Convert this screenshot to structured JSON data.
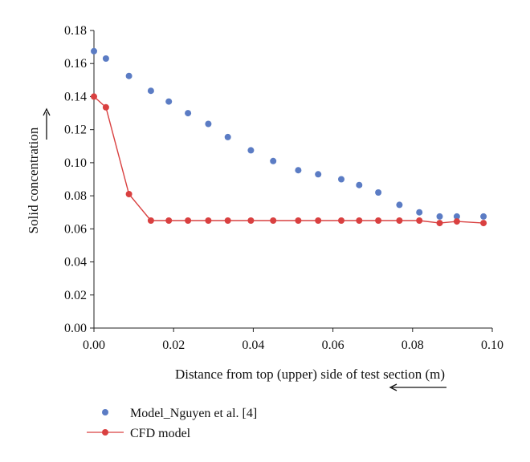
{
  "chart_data": {
    "type": "scatter",
    "title": "",
    "xlabel": "Distance from top (upper) side of test section (m)",
    "ylabel": "Solid concentration",
    "xlim": [
      0,
      0.1
    ],
    "ylim": [
      0,
      0.18
    ],
    "x_ticks": [
      "0.00",
      "0.02",
      "0.04",
      "0.06",
      "0.08",
      "0.10"
    ],
    "y_ticks": [
      "0.00",
      "0.02",
      "0.04",
      "0.06",
      "0.08",
      "0.10",
      "0.12",
      "0.14",
      "0.16",
      "0.18"
    ],
    "grid": false,
    "legend_position": "bottom-left",
    "series": [
      {
        "name": "Model_Nguyen et al. [4]",
        "style": "markers",
        "color": "#5b7cc4",
        "x": [
          0.0,
          0.003,
          0.0088,
          0.0143,
          0.0188,
          0.0236,
          0.0287,
          0.0336,
          0.0394,
          0.045,
          0.0513,
          0.0563,
          0.0621,
          0.0666,
          0.0714,
          0.0767,
          0.0817,
          0.0868,
          0.0911,
          0.0978
        ],
        "values": [
          0.1675,
          0.163,
          0.1525,
          0.1435,
          0.137,
          0.13,
          0.1235,
          0.1155,
          0.1075,
          0.101,
          0.0955,
          0.093,
          0.09,
          0.0865,
          0.082,
          0.0745,
          0.07,
          0.0675,
          0.0675,
          0.0675
        ]
      },
      {
        "name": "CFD model",
        "style": "line-markers",
        "color": "#d94040",
        "x": [
          0.0,
          0.003,
          0.0088,
          0.0143,
          0.0188,
          0.0236,
          0.0287,
          0.0336,
          0.0394,
          0.045,
          0.0513,
          0.0563,
          0.0621,
          0.0666,
          0.0714,
          0.0767,
          0.0817,
          0.0868,
          0.0911,
          0.0978
        ],
        "values": [
          0.14,
          0.1335,
          0.081,
          0.065,
          0.065,
          0.065,
          0.065,
          0.065,
          0.065,
          0.065,
          0.065,
          0.065,
          0.065,
          0.065,
          0.065,
          0.065,
          0.065,
          0.0635,
          0.0645,
          0.0635
        ]
      }
    ]
  }
}
